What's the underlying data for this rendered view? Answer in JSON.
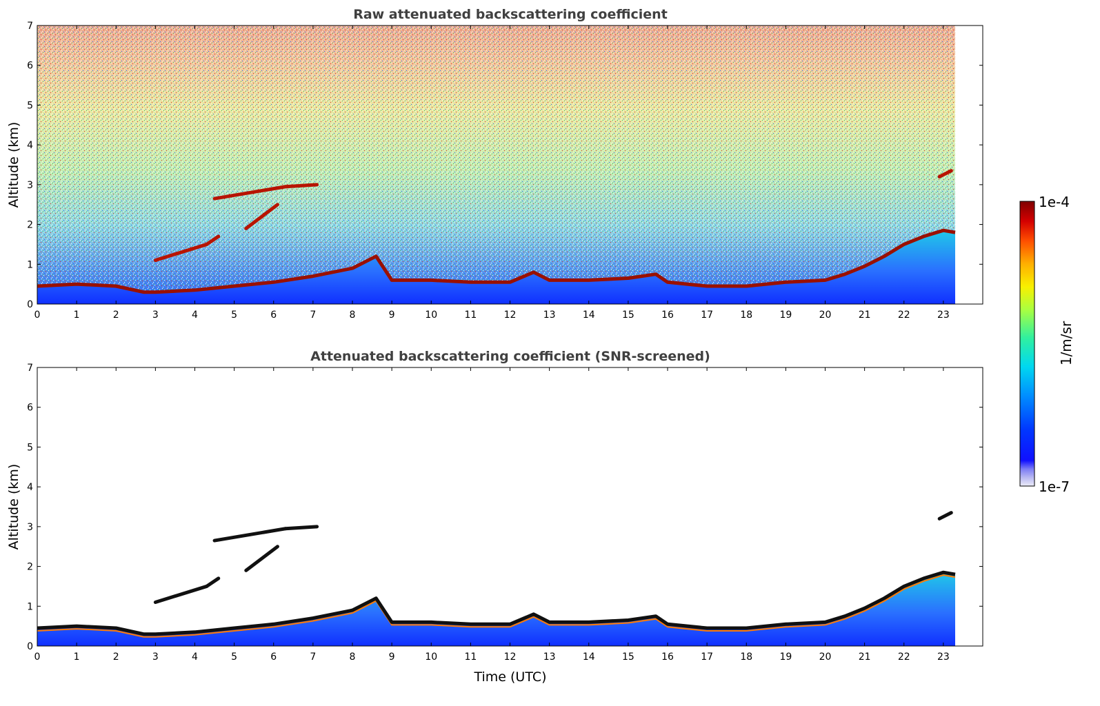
{
  "chart_data": [
    {
      "type": "heatmap",
      "title": "Raw attenuated backscattering coefficient",
      "xlabel": "",
      "ylabel": "Altitude (km)",
      "xlim": [
        0,
        24
      ],
      "ylim": [
        0,
        7
      ],
      "xticks": [
        "0",
        "1",
        "2",
        "3",
        "4",
        "5",
        "6",
        "7",
        "8",
        "9",
        "10",
        "11",
        "12",
        "13",
        "14",
        "15",
        "16",
        "17",
        "18",
        "19",
        "20",
        "21",
        "22",
        "23"
      ],
      "yticks": [
        "0",
        "1",
        "2",
        "3",
        "4",
        "5",
        "6",
        "7"
      ],
      "data_end_hour": 23.3,
      "boundary_layer_top_km": [
        {
          "t": 0,
          "h": 0.45
        },
        {
          "t": 1,
          "h": 0.5
        },
        {
          "t": 2,
          "h": 0.45
        },
        {
          "t": 2.7,
          "h": 0.3
        },
        {
          "t": 3,
          "h": 0.3
        },
        {
          "t": 4,
          "h": 0.35
        },
        {
          "t": 5,
          "h": 0.45
        },
        {
          "t": 6,
          "h": 0.55
        },
        {
          "t": 7,
          "h": 0.7
        },
        {
          "t": 8,
          "h": 0.9
        },
        {
          "t": 8.6,
          "h": 1.2
        },
        {
          "t": 9,
          "h": 0.6
        },
        {
          "t": 10,
          "h": 0.6
        },
        {
          "t": 11,
          "h": 0.55
        },
        {
          "t": 12,
          "h": 0.55
        },
        {
          "t": 12.6,
          "h": 0.8
        },
        {
          "t": 13,
          "h": 0.6
        },
        {
          "t": 14,
          "h": 0.6
        },
        {
          "t": 15,
          "h": 0.65
        },
        {
          "t": 15.7,
          "h": 0.75
        },
        {
          "t": 16,
          "h": 0.55
        },
        {
          "t": 17,
          "h": 0.45
        },
        {
          "t": 18,
          "h": 0.45
        },
        {
          "t": 19,
          "h": 0.55
        },
        {
          "t": 20,
          "h": 0.6
        },
        {
          "t": 20.5,
          "h": 0.75
        },
        {
          "t": 21,
          "h": 0.95
        },
        {
          "t": 21.5,
          "h": 1.2
        },
        {
          "t": 22,
          "h": 1.5
        },
        {
          "t": 22.5,
          "h": 1.7
        },
        {
          "t": 23,
          "h": 1.85
        },
        {
          "t": 23.3,
          "h": 1.8
        }
      ],
      "elevated_layers_km": [
        {
          "t1": 4.5,
          "t2": 6.3,
          "h1": 2.65,
          "h2": 2.95
        },
        {
          "t1": 6.3,
          "t2": 7.1,
          "h1": 2.95,
          "h2": 3.0
        },
        {
          "t1": 5.3,
          "t2": 6.1,
          "h1": 1.9,
          "h2": 2.5
        },
        {
          "t1": 3.0,
          "t2": 4.3,
          "h1": 1.1,
          "h2": 1.5
        },
        {
          "t1": 4.3,
          "t2": 4.6,
          "h1": 1.5,
          "h2": 1.7
        },
        {
          "t1": 22.9,
          "t2": 23.2,
          "h1": 3.2,
          "h2": 3.35
        }
      ]
    },
    {
      "type": "heatmap",
      "title": "Attenuated backscattering coefficient (SNR-screened)",
      "xlabel": "Time (UTC)",
      "ylabel": "Altitude (km)",
      "xlim": [
        0,
        24
      ],
      "ylim": [
        0,
        7
      ],
      "xticks": [
        "0",
        "1",
        "2",
        "3",
        "4",
        "5",
        "6",
        "7",
        "8",
        "9",
        "10",
        "11",
        "12",
        "13",
        "14",
        "15",
        "16",
        "17",
        "18",
        "19",
        "20",
        "21",
        "22",
        "23"
      ],
      "yticks": [
        "0",
        "1",
        "2",
        "3",
        "4",
        "5",
        "6",
        "7"
      ],
      "data_end_hour": 23.3
    }
  ],
  "colorbar": {
    "max_label": "1e-4",
    "min_label": "1e-7",
    "unit": "1/m/sr",
    "colors": [
      "#e6e6f7",
      "#9b9bf0",
      "#0000ff",
      "#0055ff",
      "#00aaff",
      "#00e5e5",
      "#66ff99",
      "#ccff33",
      "#ffee00",
      "#ff9900",
      "#ff3300",
      "#cc0000",
      "#800000"
    ]
  }
}
